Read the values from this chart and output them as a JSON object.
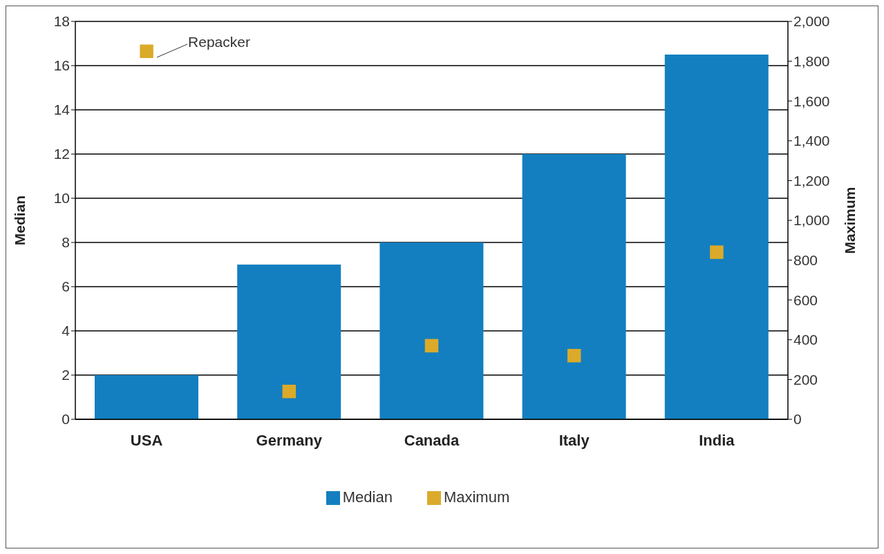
{
  "chart_data": {
    "type": "bar",
    "categories": [
      "USA",
      "Germany",
      "Canada",
      "Italy",
      "India"
    ],
    "series": [
      {
        "name": "Median",
        "color": "#137fc0",
        "values": [
          2,
          7,
          8,
          12,
          16.5
        ]
      },
      {
        "name": "Maximum",
        "type": "scatter",
        "axis": "y2",
        "color": "#dbaa2a",
        "values": [
          1850,
          140,
          370,
          320,
          840
        ]
      }
    ],
    "ylabel": "Median",
    "y2label": "Maximum",
    "ylim": [
      0,
      18
    ],
    "yticks": [
      0,
      2,
      4,
      6,
      8,
      10,
      12,
      14,
      16,
      18
    ],
    "y2lim": [
      0,
      2000
    ],
    "y2ticks": [
      0,
      {
        "value": 200,
        "label": "200"
      },
      {
        "value": 400,
        "label": "400"
      },
      {
        "value": 600,
        "label": "600"
      },
      {
        "value": 800,
        "label": "800"
      },
      {
        "value": 1000,
        "label": "1,000"
      },
      {
        "value": 1200,
        "label": "1,200"
      },
      {
        "value": 1400,
        "label": "1,400"
      },
      {
        "value": 1600,
        "label": "1,600"
      },
      {
        "value": 1800,
        "label": "1,800"
      },
      {
        "value": 2000,
        "label": "2,000"
      }
    ],
    "annotations": [
      {
        "text": "Repacker",
        "x": "USA"
      }
    ],
    "grid": "y",
    "legend": "bottom",
    "marker": "square"
  }
}
